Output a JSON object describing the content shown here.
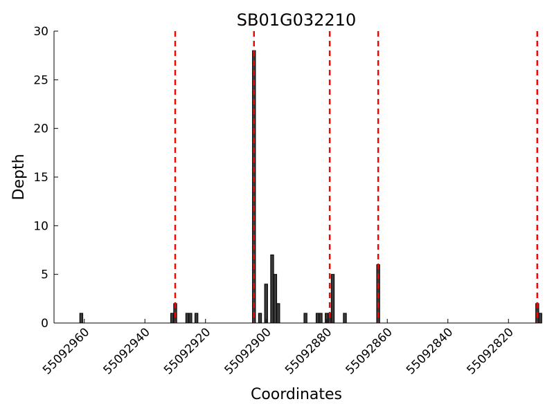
{
  "chart_data": {
    "type": "bar",
    "title": "SB01G032210",
    "xlabel": "Coordinates",
    "ylabel": "Depth",
    "xlim": [
      55092970,
      55092810
    ],
    "ylim": [
      0,
      30
    ],
    "x_ticks": [
      55092960,
      55092940,
      55092920,
      55092900,
      55092880,
      55092860,
      55092840,
      55092820
    ],
    "y_ticks": [
      0,
      5,
      10,
      15,
      20,
      25,
      30
    ],
    "bars": [
      {
        "x": 55092961,
        "y": 1
      },
      {
        "x": 55092931,
        "y": 1
      },
      {
        "x": 55092930,
        "y": 2
      },
      {
        "x": 55092926,
        "y": 1
      },
      {
        "x": 55092925,
        "y": 1
      },
      {
        "x": 55092923,
        "y": 1
      },
      {
        "x": 55092904,
        "y": 28
      },
      {
        "x": 55092902,
        "y": 1
      },
      {
        "x": 55092900,
        "y": 4
      },
      {
        "x": 55092898,
        "y": 7
      },
      {
        "x": 55092897,
        "y": 5
      },
      {
        "x": 55092896,
        "y": 2
      },
      {
        "x": 55092887,
        "y": 1
      },
      {
        "x": 55092883,
        "y": 1
      },
      {
        "x": 55092882,
        "y": 1
      },
      {
        "x": 55092880,
        "y": 1
      },
      {
        "x": 55092879,
        "y": 1
      },
      {
        "x": 55092878,
        "y": 5
      },
      {
        "x": 55092874,
        "y": 1
      },
      {
        "x": 55092863,
        "y": 6
      },
      {
        "x": 55092810.5,
        "y": 2
      },
      {
        "x": 55092809.5,
        "y": 1
      }
    ],
    "vlines": [
      55092930,
      55092904,
      55092879,
      55092863,
      55092810.5
    ],
    "colors": {
      "bar_fill": "#3a3a3a",
      "bar_edge": "#000000",
      "vline": "#ff0000",
      "axis": "#000000"
    }
  }
}
